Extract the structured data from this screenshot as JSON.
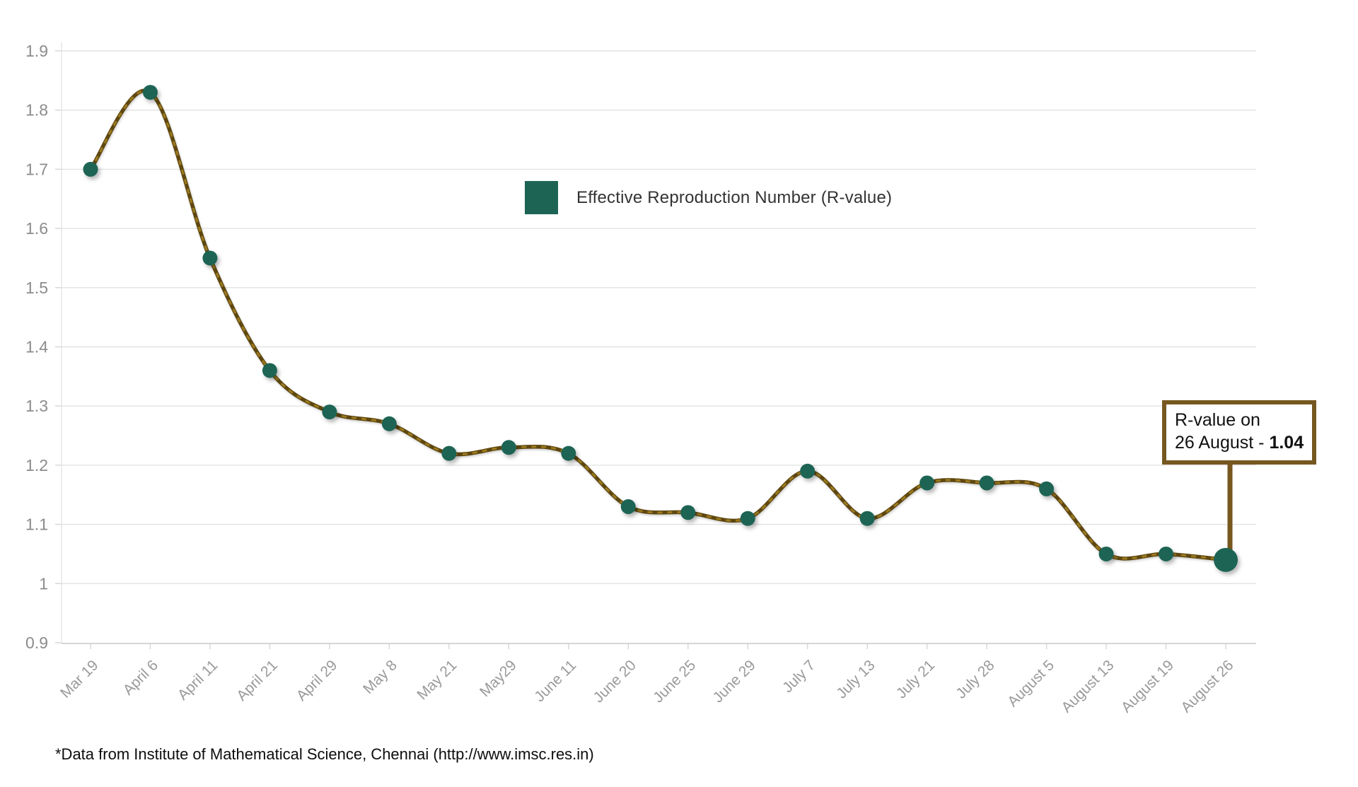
{
  "chart_data": {
    "type": "line",
    "title": "",
    "xlabel": "",
    "ylabel": "",
    "categories": [
      "Mar 19",
      "April 6",
      "April 11",
      "April 21",
      "April 29",
      "May 8",
      "May 21",
      "May29",
      "June 11",
      "June 20",
      "June 25",
      "June 29",
      "July 7",
      "July 13",
      "July 21",
      "July 28",
      "August 5",
      "August 13",
      "August 19",
      "August 26"
    ],
    "series": [
      {
        "name": "Effective Reproduction Number (R-value)",
        "values": [
          1.7,
          1.83,
          1.55,
          1.36,
          1.29,
          1.27,
          1.22,
          1.23,
          1.22,
          1.13,
          1.12,
          1.11,
          1.19,
          1.11,
          1.17,
          1.17,
          1.16,
          1.05,
          1.05,
          1.04
        ]
      }
    ],
    "ylim": [
      0.9,
      1.9
    ],
    "ytick_step": 0.1,
    "ytick_labels": [
      "0.9",
      "1",
      "1.1",
      "1.2",
      "1.3",
      "1.4",
      "1.5",
      "1.6",
      "1.7",
      "1.8",
      "1.9"
    ],
    "grid": "horizontal",
    "legend_position": "top-center",
    "marker_highlight_index": 19,
    "colors": {
      "line_dark": "#5e4710",
      "line_light": "#9b7a1e",
      "marker": "#1d6454",
      "grid": "#e2e2e2",
      "axis": "#c9c9c9",
      "tick": "#d5d5d5",
      "y_label": "#8c8c8c",
      "x_label": "#9a9a9a",
      "annotation_border": "#76571f"
    }
  },
  "legend": {
    "label": "Effective Reproduction Number (R-value)"
  },
  "annotation": {
    "line1": "R-value on",
    "line2_prefix": "26 August - ",
    "value": "1.04"
  },
  "footer": {
    "note": "*Data from Institute of Mathematical Science, Chennai (http://www.imsc.res.in)"
  }
}
